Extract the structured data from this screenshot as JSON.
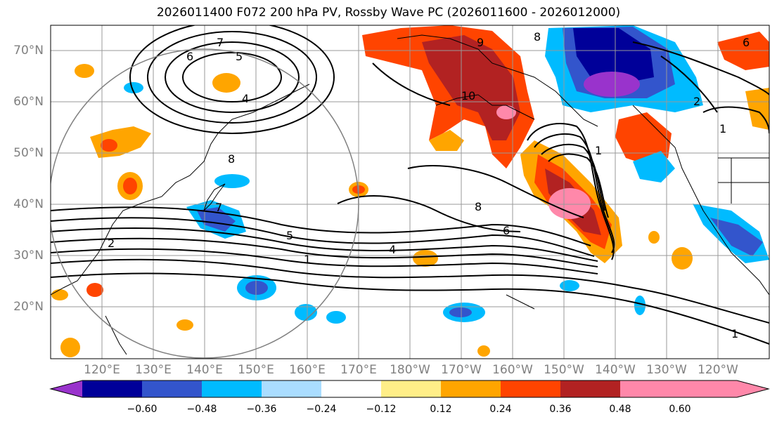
{
  "title": "2026011400 F072 200 hPa PV, Rossby Wave PC (2026011600 - 2026012000)",
  "lat_labels": [
    "70°N",
    "60°N",
    "50°N",
    "40°N",
    "30°N",
    "20°N"
  ],
  "lon_labels": [
    "120°E",
    "130°E",
    "140°E",
    "150°E",
    "160°E",
    "170°E",
    "180°W",
    "170°W",
    "160°W",
    "150°W",
    "140°W",
    "130°W",
    "120°W"
  ],
  "colorbar": {
    "colors": [
      "#9933cc",
      "#000099",
      "#3355cc",
      "#00bbff",
      "#aaddff",
      "#ffffff",
      "#ffee88",
      "#ffa500",
      "#ff4400",
      "#b22222",
      "#ff88aa"
    ],
    "ticks": [
      "−0.60",
      "−0.48",
      "−0.36",
      "−0.24",
      "−0.12",
      "0.12",
      "0.24",
      "0.36",
      "0.48",
      "0.60"
    ]
  },
  "contour_labels": [
    "7",
    "6",
    "5",
    "4",
    "8",
    "9",
    "10",
    "8",
    "7",
    "6",
    "5",
    "4",
    "1",
    "2",
    "1",
    "1",
    "2",
    "6",
    "8",
    "1"
  ]
}
